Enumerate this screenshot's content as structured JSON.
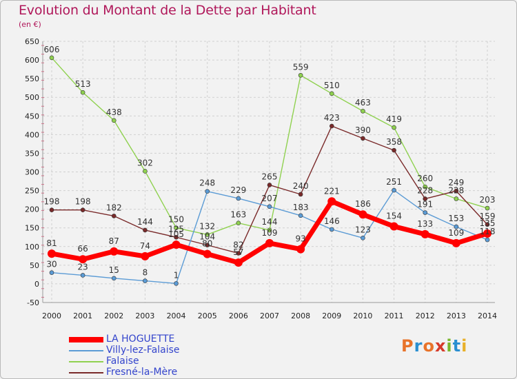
{
  "title": "Evolution du Montant de la Dette par Habitant",
  "unit": "(en €)",
  "logo": {
    "text": "Proxiti",
    "letters": [
      "P",
      "r",
      "o",
      "x",
      "i",
      "t",
      "i"
    ],
    "colors": [
      "#e8732a",
      "#2a8fd1",
      "#e8732a",
      "#d63a2a",
      "#7ab72d",
      "#2a8fd1",
      "#e8b02a"
    ]
  },
  "chart_data": {
    "type": "line",
    "x": [
      "2000",
      "2001",
      "2002",
      "2003",
      "2004",
      "2005",
      "2006",
      "2007",
      "2008",
      "2009",
      "2010",
      "2011",
      "2012",
      "2013",
      "2014"
    ],
    "ylim": [
      -50,
      650
    ],
    "yticks": [
      "-50",
      "0",
      "50",
      "100",
      "150",
      "200",
      "250",
      "300",
      "350",
      "400",
      "450",
      "500",
      "550",
      "600",
      "650"
    ],
    "grid": true,
    "legend_position": "bottom-left",
    "series": [
      {
        "name": "Falaise",
        "color": "#8fd14f",
        "values": [
          606,
          513,
          438,
          302,
          150,
          132,
          163,
          144,
          559,
          510,
          463,
          419,
          260,
          228,
          203
        ],
        "labels": [
          "606",
          "513",
          "438",
          "302",
          "150",
          "132",
          "163",
          "144",
          "559",
          "510",
          "463",
          "419",
          "260",
          "228",
          "203"
        ]
      },
      {
        "name": "Fresné-la-Mère",
        "color": "#7a2a2a",
        "values": [
          198,
          198,
          182,
          144,
          125,
          104,
          82,
          265,
          240,
          423,
          390,
          358,
          228,
          249,
          159
        ],
        "labels": [
          "198",
          "198",
          "182",
          "144",
          "125",
          "104",
          "82",
          "265",
          "240",
          "423",
          "390",
          "358",
          "228",
          "249",
          "159"
        ]
      },
      {
        "name": "Villy-lez-Falaise",
        "color": "#5b9bd5",
        "values": [
          30,
          23,
          15,
          8,
          1,
          248,
          229,
          207,
          183,
          146,
          123,
          251,
          191,
          153,
          118
        ],
        "labels": [
          "30",
          "23",
          "15",
          "8",
          "1",
          "248",
          "229",
          "207",
          "183",
          "146",
          "123",
          "251",
          "191",
          "153",
          "118"
        ]
      },
      {
        "name": "LA HOGUETTE",
        "color": "#ff0000",
        "values": [
          81,
          66,
          87,
          74,
          105,
          80,
          57,
          109,
          93,
          221,
          186,
          154,
          133,
          109,
          135
        ],
        "labels": [
          "81",
          "66",
          "87",
          "74",
          "105",
          "80",
          "57",
          "109",
          "93",
          "221",
          "186",
          "154",
          "133",
          "109",
          "135"
        ]
      }
    ]
  },
  "legend_order": [
    "LA HOGUETTE",
    "Villy-lez-Falaise",
    "Falaise",
    "Fresné-la-Mère"
  ]
}
